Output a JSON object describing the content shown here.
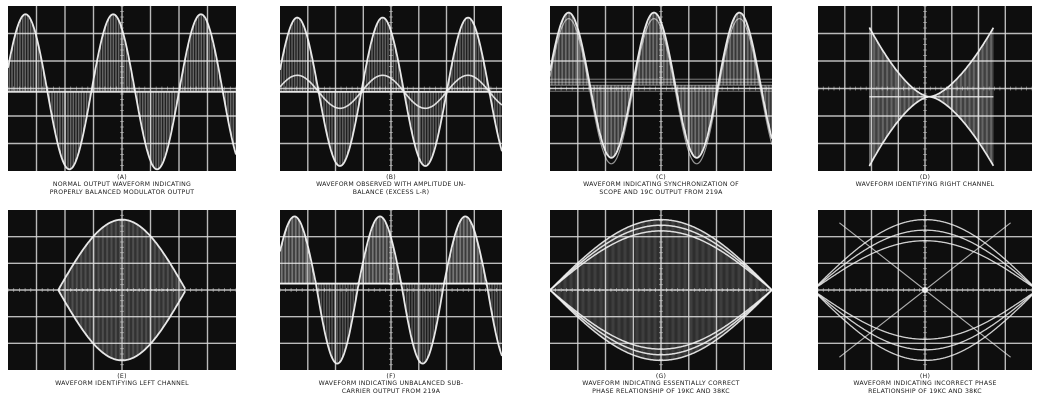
{
  "colors": {
    "screen": "#0e0e0e",
    "grid": "#d8d8d8",
    "trace": "#f2f2f2",
    "caption": "#1a1a1a"
  },
  "panels": [
    {
      "id": "a",
      "letter": "(A)",
      "lines": [
        "NORMAL OUTPUT WAVEFORM INDICATING",
        "PROPERLY BALANCED MODULATOR OUTPUT"
      ]
    },
    {
      "id": "b",
      "letter": "(B)",
      "lines": [
        "WAVEFORM OBSERVED WITH AMPLITUDE UN-",
        "BALANCE (EXCESS L-R)"
      ]
    },
    {
      "id": "c",
      "letter": "(C)",
      "lines": [
        "WAVEFORM INDICATING SYNCHRONIZATION OF",
        "SCOPE AND 19C OUTPUT FROM 219A"
      ]
    },
    {
      "id": "d",
      "letter": "(D)",
      "lines": [
        "WAVEFORM IDENTIFYING RIGHT CHANNEL"
      ]
    },
    {
      "id": "e",
      "letter": "(E)",
      "lines": [
        "WAVEFORM IDENTIFYING LEFT CHANNEL"
      ]
    },
    {
      "id": "f",
      "letter": "(F)",
      "lines": [
        "WAVEFORM INDICATING UNBALANCED SUB-",
        "CARRIER OUTPUT FROM 219A"
      ]
    },
    {
      "id": "g",
      "letter": "(G)",
      "lines": [
        "WAVEFORM INDICATING ESSENTIALLY CORRECT",
        "PHASE RELATIONSHIP OF 19KC AND 38KC"
      ]
    },
    {
      "id": "h",
      "letter": "(H)",
      "lines": [
        "WAVEFORM INDICATING INCORRECT PHASE",
        "RELATIONSHIP OF 19KC AND 38KC"
      ]
    }
  ]
}
